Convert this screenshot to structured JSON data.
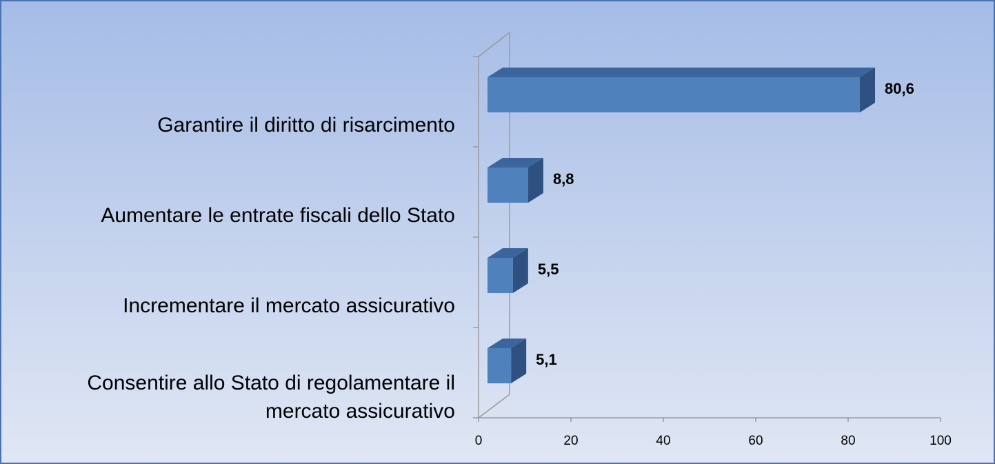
{
  "chart_data": {
    "type": "bar",
    "orientation": "horizontal",
    "categories": [
      "Garantire il diritto di risarcimento",
      "Aumentare le entrate fiscali dello Stato",
      "Incrementare il mercato assicurativo",
      "Consentire allo Stato di regolamentare il mercato assicurativo"
    ],
    "values": [
      80.6,
      8.8,
      5.5,
      5.1
    ],
    "value_labels": [
      "80,6",
      "8,8",
      "5,5",
      "5,1"
    ],
    "color": "#4f81bd",
    "xlim": [
      0,
      100
    ],
    "xticks": [
      0,
      20,
      40,
      60,
      80,
      100
    ]
  }
}
